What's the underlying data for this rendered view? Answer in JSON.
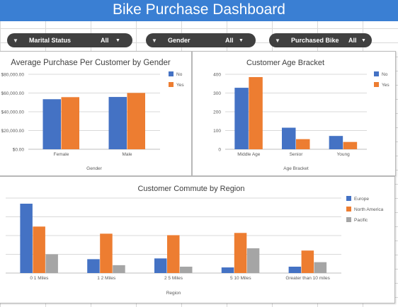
{
  "dashboard": {
    "title": "Bike Purchase Dashboard"
  },
  "slicers": [
    {
      "label": "Marital Status",
      "value": "All"
    },
    {
      "label": "Gender",
      "value": "All"
    },
    {
      "label": "Purchased Bike",
      "value": "All"
    }
  ],
  "icons": {
    "filter": "funnel-icon",
    "dropdown": "caret-down-icon"
  },
  "colors": {
    "banner": "#3a7fd3",
    "series_blue": "#4472c4",
    "series_orange": "#ed7d31",
    "series_gray": "#a5a5a5",
    "slicer_bg": "#404040"
  },
  "chart_data": [
    {
      "type": "bar",
      "title": "Average Purchase Per Customer by Gender",
      "xlabel": "Gender",
      "ylabel": "",
      "categories": [
        "Female",
        "Male"
      ],
      "series": [
        {
          "name": "No",
          "values": [
            53400,
            55800
          ]
        },
        {
          "name": "Yes",
          "values": [
            55600,
            60100
          ]
        }
      ],
      "yticks": [
        "$0.00",
        "$20,000.00",
        "$40,000.00",
        "$60,000.00",
        "$80,000.00"
      ],
      "ylim": [
        0,
        80000
      ],
      "legend": "right",
      "grid": true
    },
    {
      "type": "bar",
      "title": "Customer Age Bracket",
      "xlabel": "Age Bracket",
      "ylabel": "",
      "categories": [
        "Middle Age",
        "Senior",
        "Young"
      ],
      "series": [
        {
          "name": "No",
          "values": [
            328,
            115,
            71
          ]
        },
        {
          "name": "Yes",
          "values": [
            385,
            54,
            39
          ]
        }
      ],
      "yticks": [
        "0",
        "100",
        "200",
        "300",
        "400"
      ],
      "ylim": [
        0,
        400
      ],
      "legend": "right",
      "grid": true
    },
    {
      "type": "bar",
      "title": "Customer Commute by Region",
      "xlabel": "Region",
      "ylabel": "",
      "categories": [
        "0 1 Miles",
        "1 2 Miles",
        "2 5 Miles",
        "5 10 Miles",
        "Greater than 10 miles"
      ],
      "series": [
        {
          "name": "Europe",
          "values": [
            185,
            37,
            39,
            15,
            17
          ]
        },
        {
          "name": "North America",
          "values": [
            124,
            105,
            101,
            107,
            60
          ]
        },
        {
          "name": "Pacific",
          "values": [
            50,
            21,
            17,
            66,
            29
          ]
        }
      ],
      "yticks": [
        "",
        "",
        "",
        "",
        ""
      ],
      "ylim": [
        0,
        200
      ],
      "legend": "right",
      "grid": true
    }
  ]
}
